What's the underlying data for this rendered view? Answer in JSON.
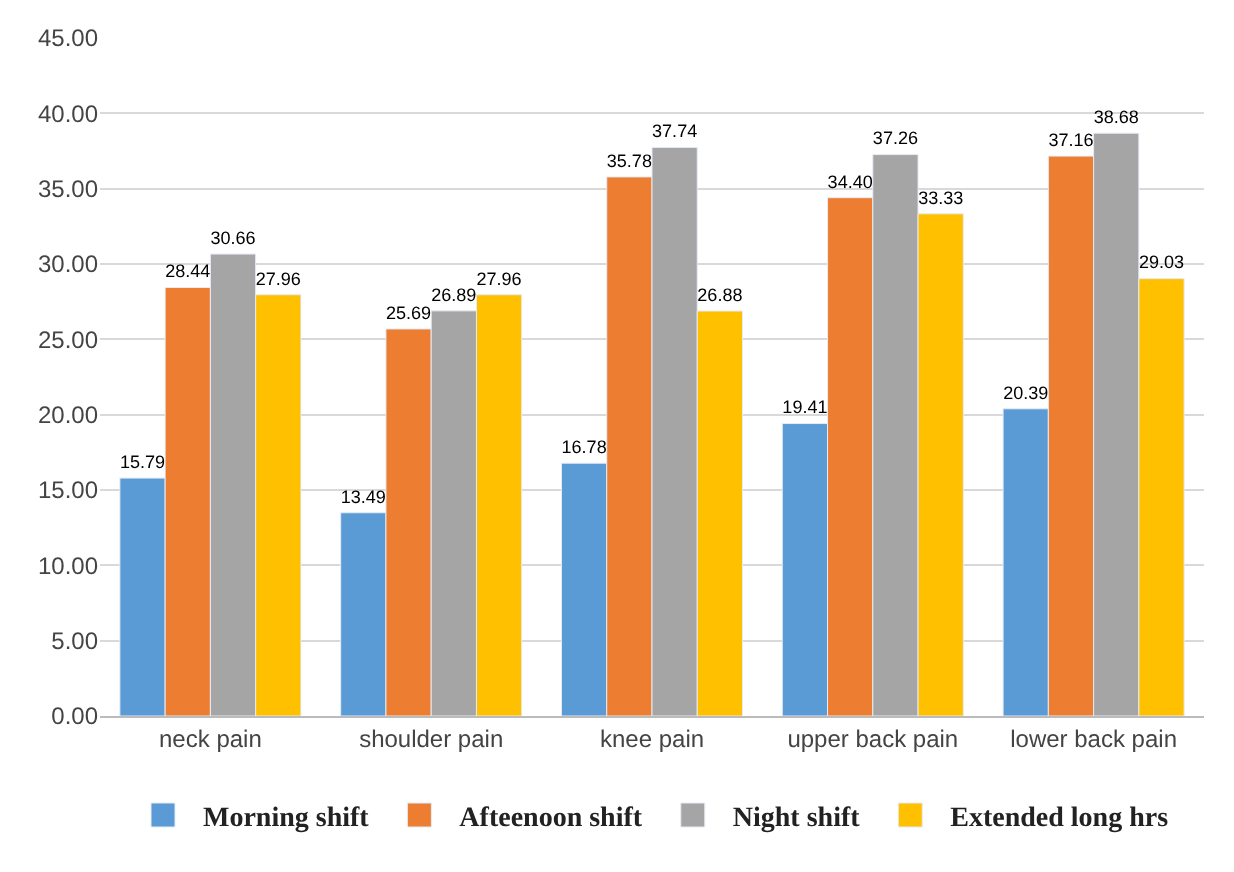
{
  "chart_data": {
    "type": "bar",
    "categories": [
      "neck pain",
      "shoulder pain",
      "knee pain",
      "upper back pain",
      "lower back pain"
    ],
    "series": [
      {
        "name": "Morning shift",
        "color": "#5b9bd5",
        "values": [
          15.79,
          13.49,
          16.78,
          19.41,
          20.39
        ],
        "value_labels": [
          "15.79",
          "13.49",
          "16.78",
          "19.41",
          "20.39"
        ]
      },
      {
        "name": "Afteenoon shift",
        "color": "#ed7d31",
        "values": [
          28.44,
          25.69,
          35.78,
          34.4,
          37.16
        ],
        "value_labels": [
          "28.44",
          "25.69",
          "35.78",
          "34.40",
          "37.16"
        ]
      },
      {
        "name": "Night shift",
        "color": "#a5a5a5",
        "values": [
          30.66,
          26.89,
          37.74,
          37.26,
          38.68
        ],
        "value_labels": [
          "30.66",
          "26.89",
          "37.74",
          "37.26",
          "38.68"
        ]
      },
      {
        "name": "Extended long hrs",
        "color": "#ffc000",
        "values": [
          27.96,
          27.96,
          26.88,
          33.33,
          29.03
        ],
        "value_labels": [
          "27.96",
          "27.96",
          "26.88",
          "33.33",
          "29.03"
        ]
      }
    ],
    "ylim": [
      0,
      45
    ],
    "yticks": [
      {
        "value": 0,
        "label": "0.00"
      },
      {
        "value": 5,
        "label": "5.00"
      },
      {
        "value": 10,
        "label": "10.00"
      },
      {
        "value": 15,
        "label": "15.00"
      },
      {
        "value": 20,
        "label": "20.00"
      },
      {
        "value": 25,
        "label": "25.00"
      },
      {
        "value": 30,
        "label": "30.00"
      },
      {
        "value": 35,
        "label": "35.00"
      },
      {
        "value": 40,
        "label": "40.00"
      },
      {
        "value": 45,
        "label": "45.00"
      }
    ],
    "grid": "y",
    "legend": "bottom"
  }
}
